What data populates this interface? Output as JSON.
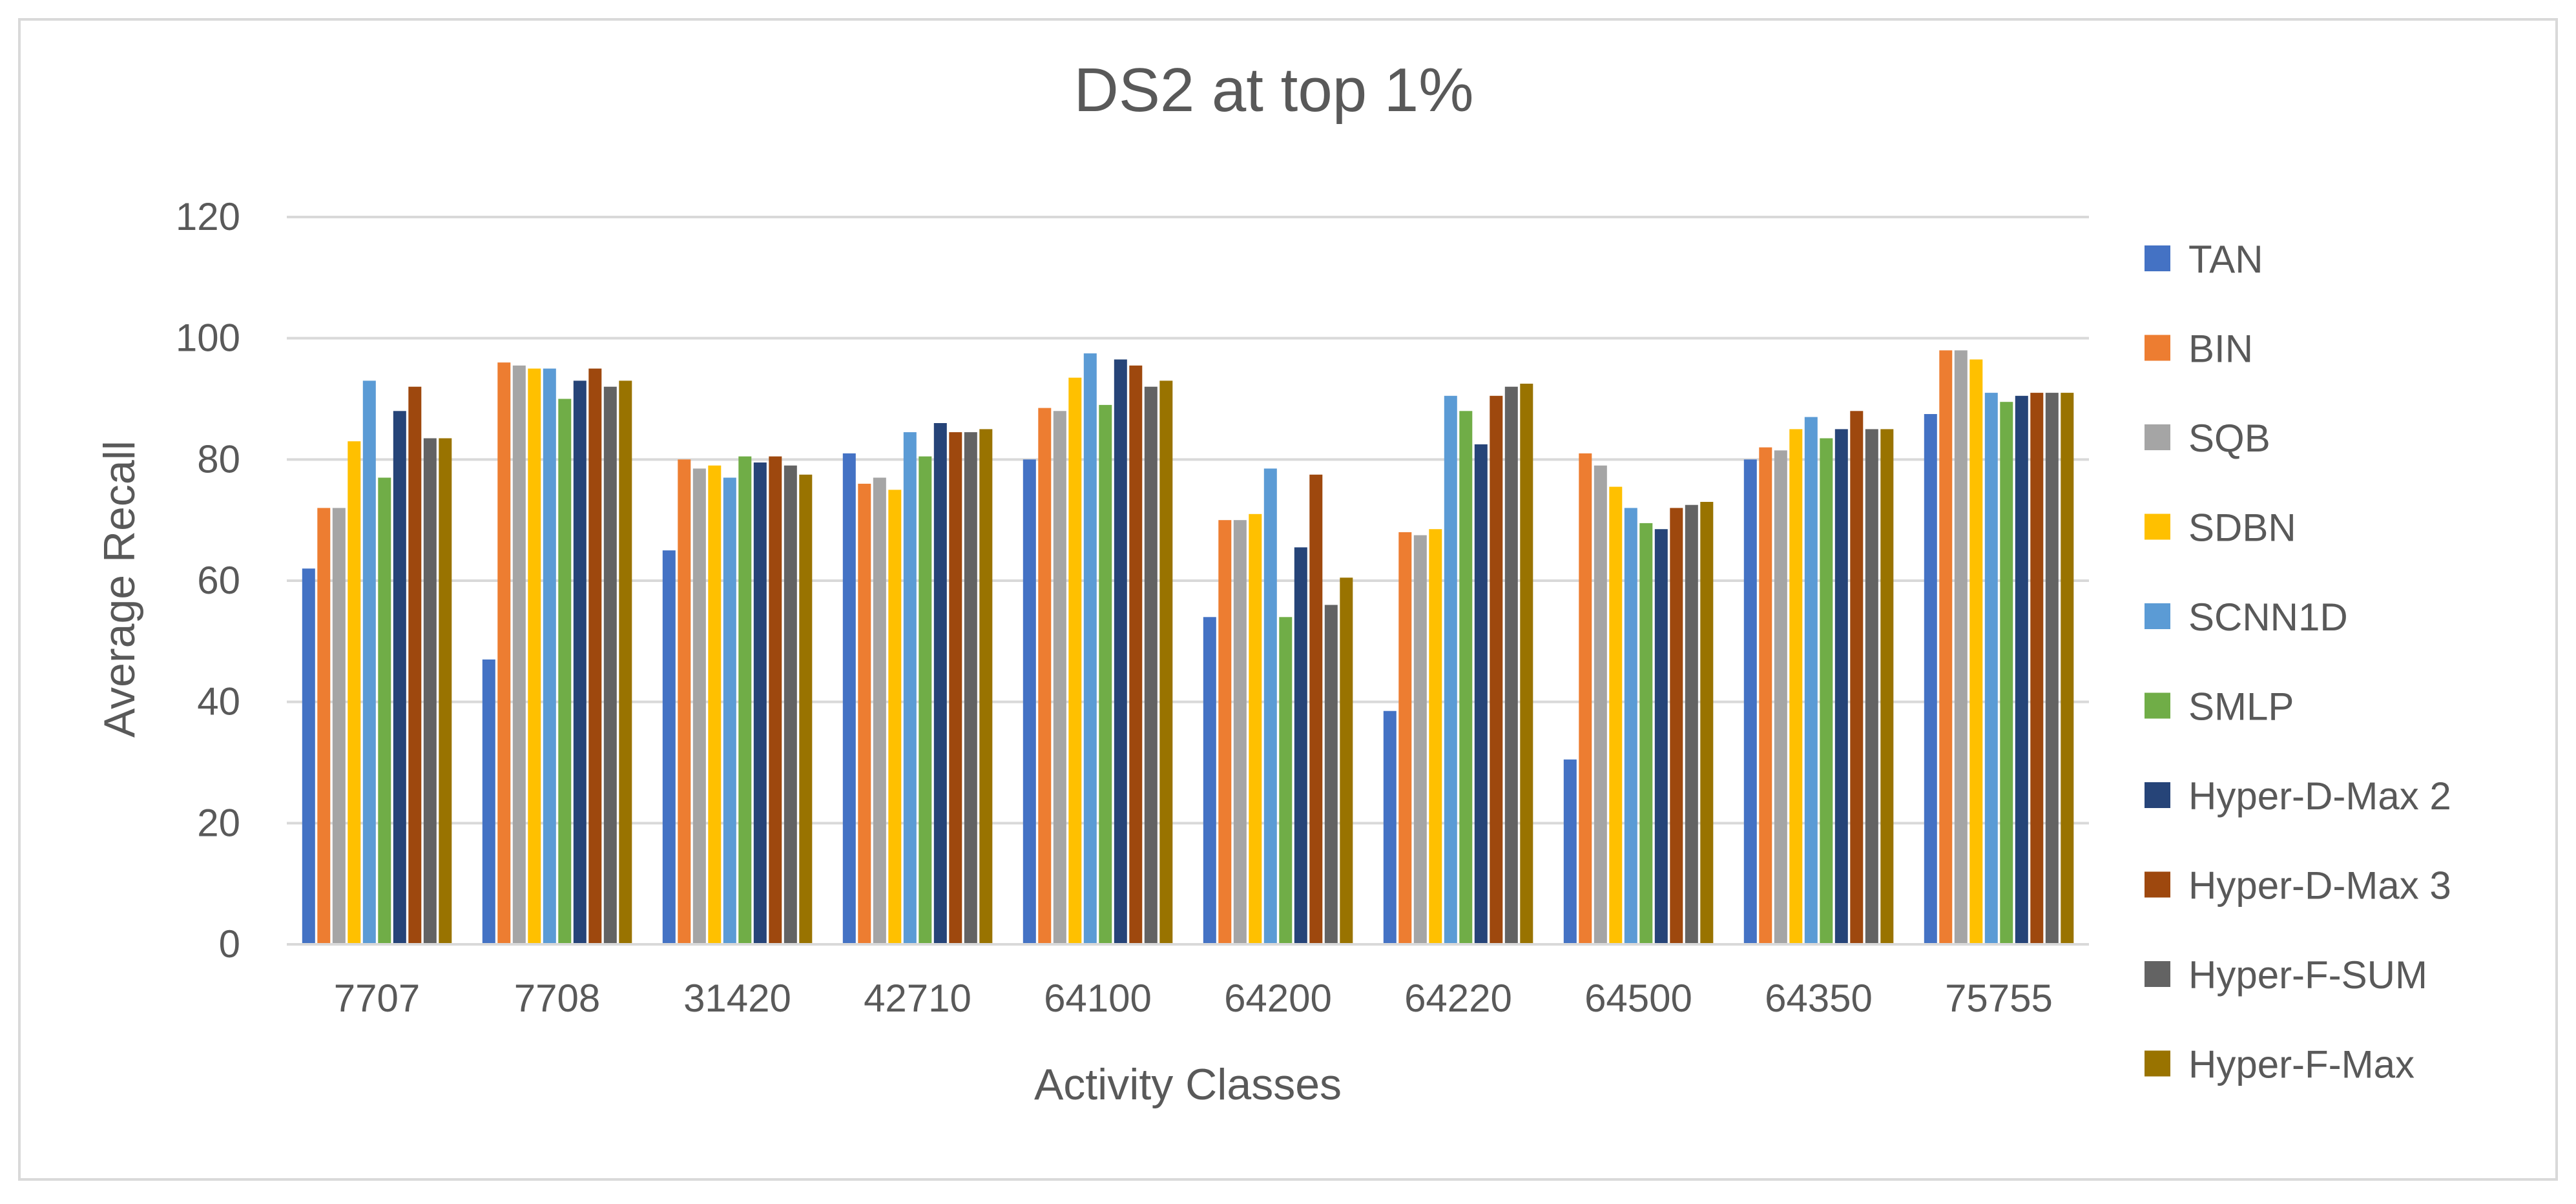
{
  "chart_data": {
    "type": "bar",
    "title": "DS2 at top 1%",
    "xlabel": "Activity Classes",
    "ylabel": "Average Recall",
    "ylim": [
      0,
      120
    ],
    "yticks": [
      0,
      20,
      40,
      60,
      80,
      100,
      120
    ],
    "grid": true,
    "legend_position": "right",
    "categories": [
      "7707",
      "7708",
      "31420",
      "42710",
      "64100",
      "64200",
      "64220",
      "64500",
      "64350",
      "75755"
    ],
    "series": [
      {
        "name": "TAN",
        "color": "#4472c4",
        "values": [
          62,
          47,
          65,
          81,
          80,
          54,
          38.5,
          30.5,
          80,
          87.5
        ]
      },
      {
        "name": "BIN",
        "color": "#ed7d31",
        "values": [
          72,
          96,
          80,
          76,
          88.5,
          70,
          68,
          81,
          82,
          98
        ]
      },
      {
        "name": "SQB",
        "color": "#a5a5a5",
        "values": [
          72,
          95.5,
          78.5,
          77,
          88,
          70,
          67.5,
          79,
          81.5,
          98
        ]
      },
      {
        "name": "SDBN",
        "color": "#ffc000",
        "values": [
          83,
          95,
          79,
          75,
          93.5,
          71,
          68.5,
          75.5,
          85,
          96.5
        ]
      },
      {
        "name": "SCNN1D",
        "color": "#5b9bd5",
        "values": [
          93,
          95,
          77,
          84.5,
          97.5,
          78.5,
          90.5,
          72,
          87,
          91
        ]
      },
      {
        "name": "SMLP",
        "color": "#70ad47",
        "values": [
          77,
          90,
          80.5,
          80.5,
          89,
          54,
          88,
          69.5,
          83.5,
          89.5
        ]
      },
      {
        "name": "Hyper-D-Max 2",
        "color": "#264478",
        "values": [
          88,
          93,
          79.5,
          86,
          96.5,
          65.5,
          82.5,
          68.5,
          85,
          90.5
        ]
      },
      {
        "name": "Hyper-D-Max 3",
        "color": "#9e480e",
        "values": [
          92,
          95,
          80.5,
          84.5,
          95.5,
          77.5,
          90.5,
          72,
          88,
          91
        ]
      },
      {
        "name": "Hyper-F-SUM",
        "color": "#636363",
        "values": [
          83.5,
          92,
          79,
          84.5,
          92,
          56,
          92,
          72.5,
          85,
          91
        ]
      },
      {
        "name": "Hyper-F-Max",
        "color": "#997300",
        "values": [
          83.5,
          93,
          77.5,
          85,
          93,
          60.5,
          92.5,
          73,
          85,
          91
        ]
      }
    ]
  }
}
